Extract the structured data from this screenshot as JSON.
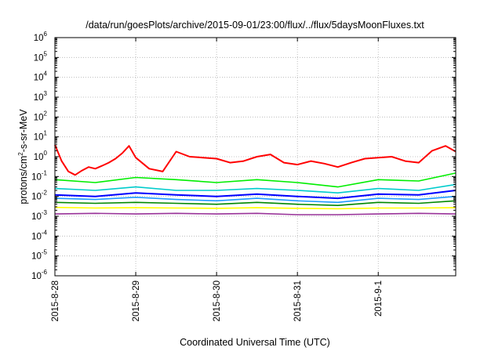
{
  "chart_data": {
    "type": "line",
    "title": "/data/run/goesPlots/archive/2015-09-01/23:00/flux/../flux/5daysMoonFluxes.txt",
    "xlabel": "Coordinated Universal Time (UTC)",
    "ylabel": "protons/cm2-s-sr-MeV",
    "ylabel_parts": {
      "pre": "protons/cm",
      "sup": "2",
      "post": "-s-sr-MeV"
    },
    "yscale": "log",
    "ylim": [
      1e-06,
      1000000.0
    ],
    "xlim": [
      "2015-08-28T00:00",
      "2015-09-01T23:00"
    ],
    "grid": true,
    "y_ticks": [
      {
        "value": 1e-06,
        "exp": "-6"
      },
      {
        "value": 1e-05,
        "exp": "-5"
      },
      {
        "value": 0.0001,
        "exp": "-4"
      },
      {
        "value": 0.001,
        "exp": "-3"
      },
      {
        "value": 0.01,
        "exp": "-2"
      },
      {
        "value": 0.1,
        "exp": "-1"
      },
      {
        "value": 1,
        "exp": "0"
      },
      {
        "value": 10,
        "exp": "1"
      },
      {
        "value": 100,
        "exp": "2"
      },
      {
        "value": 1000,
        "exp": "3"
      },
      {
        "value": 10000,
        "exp": "4"
      },
      {
        "value": 100000,
        "exp": "5"
      },
      {
        "value": 1000000,
        "exp": "6"
      }
    ],
    "y_tick_base": "10",
    "x_ticks": [
      "2015-8-28",
      "2015-8-29",
      "2015-8-30",
      "2015-8-31",
      "2015-9-1"
    ],
    "x_tick_values": [
      "2015-08-28T00:00",
      "2015-08-29T00:00",
      "2015-08-30T00:00",
      "2015-08-31T00:00",
      "2015-09-01T00:00"
    ],
    "series": [
      {
        "color": "#ff0000",
        "x": [
          "2015-08-28T00:00",
          "2015-08-28T02:00",
          "2015-08-28T04:00",
          "2015-08-28T06:00",
          "2015-08-28T08:00",
          "2015-08-28T10:00",
          "2015-08-28T12:00",
          "2015-08-28T14:00",
          "2015-08-28T16:00",
          "2015-08-28T18:00",
          "2015-08-28T20:00",
          "2015-08-28T22:00",
          "2015-08-29T00:00",
          "2015-08-29T04:00",
          "2015-08-29T08:00",
          "2015-08-29T12:00",
          "2015-08-29T16:00",
          "2015-08-29T20:00",
          "2015-08-30T00:00",
          "2015-08-30T04:00",
          "2015-08-30T08:00",
          "2015-08-30T12:00",
          "2015-08-30T16:00",
          "2015-08-30T20:00",
          "2015-08-31T00:00",
          "2015-08-31T04:00",
          "2015-08-31T08:00",
          "2015-08-31T12:00",
          "2015-08-31T16:00",
          "2015-08-31T20:00",
          "2015-09-01T00:00",
          "2015-09-01T04:00",
          "2015-09-01T08:00",
          "2015-09-01T12:00",
          "2015-09-01T16:00",
          "2015-09-01T20:00",
          "2015-09-01T23:00"
        ],
        "values": [
          4.0,
          0.6,
          0.18,
          0.12,
          0.2,
          0.3,
          0.25,
          0.35,
          0.5,
          0.8,
          1.5,
          3.5,
          0.9,
          0.25,
          0.18,
          1.8,
          1.0,
          0.9,
          0.8,
          0.5,
          0.6,
          1.0,
          1.3,
          0.5,
          0.4,
          0.6,
          0.45,
          0.3,
          0.5,
          0.8,
          0.9,
          1.0,
          0.6,
          0.5,
          2.0,
          3.5,
          1.8
        ]
      },
      {
        "color": "#00ee00",
        "x": [
          "2015-08-28T00:00",
          "2015-08-28T12:00",
          "2015-08-29T00:00",
          "2015-08-29T12:00",
          "2015-08-30T00:00",
          "2015-08-30T12:00",
          "2015-08-31T00:00",
          "2015-08-31T12:00",
          "2015-09-01T00:00",
          "2015-09-01T12:00",
          "2015-09-01T23:00"
        ],
        "values": [
          0.07,
          0.05,
          0.09,
          0.07,
          0.05,
          0.07,
          0.05,
          0.03,
          0.07,
          0.06,
          0.15
        ]
      },
      {
        "color": "#00cccc",
        "x": [
          "2015-08-28T00:00",
          "2015-08-28T12:00",
          "2015-08-29T00:00",
          "2015-08-29T12:00",
          "2015-08-30T00:00",
          "2015-08-30T12:00",
          "2015-08-31T00:00",
          "2015-08-31T12:00",
          "2015-09-01T00:00",
          "2015-09-01T12:00",
          "2015-09-01T23:00"
        ],
        "values": [
          0.025,
          0.02,
          0.03,
          0.02,
          0.02,
          0.025,
          0.02,
          0.015,
          0.025,
          0.02,
          0.04
        ]
      },
      {
        "color": "#0000ff",
        "x": [
          "2015-08-28T00:00",
          "2015-08-28T12:00",
          "2015-08-29T00:00",
          "2015-08-29T12:00",
          "2015-08-30T00:00",
          "2015-08-30T12:00",
          "2015-08-31T00:00",
          "2015-08-31T12:00",
          "2015-09-01T00:00",
          "2015-09-01T12:00",
          "2015-09-01T23:00"
        ],
        "values": [
          0.012,
          0.01,
          0.015,
          0.012,
          0.01,
          0.013,
          0.01,
          0.008,
          0.013,
          0.012,
          0.02
        ]
      },
      {
        "color": "#1f9bff",
        "x": [
          "2015-08-28T00:00",
          "2015-08-28T12:00",
          "2015-08-29T00:00",
          "2015-08-29T12:00",
          "2015-08-30T00:00",
          "2015-08-30T12:00",
          "2015-08-31T00:00",
          "2015-08-31T12:00",
          "2015-09-01T00:00",
          "2015-09-01T12:00",
          "2015-09-01T23:00"
        ],
        "values": [
          0.008,
          0.007,
          0.009,
          0.007,
          0.006,
          0.008,
          0.006,
          0.005,
          0.008,
          0.007,
          0.01
        ]
      },
      {
        "color": "#008800",
        "x": [
          "2015-08-28T00:00",
          "2015-08-28T12:00",
          "2015-08-29T00:00",
          "2015-08-29T12:00",
          "2015-08-30T00:00",
          "2015-08-30T12:00",
          "2015-08-31T00:00",
          "2015-08-31T12:00",
          "2015-09-01T00:00",
          "2015-09-01T12:00",
          "2015-09-01T23:00"
        ],
        "values": [
          0.005,
          0.0045,
          0.005,
          0.0045,
          0.004,
          0.005,
          0.004,
          0.0035,
          0.005,
          0.0045,
          0.006
        ]
      },
      {
        "color": "#ffff00",
        "x": [
          "2015-08-28T00:00",
          "2015-08-28T12:00",
          "2015-08-29T00:00",
          "2015-08-29T12:00",
          "2015-08-30T00:00",
          "2015-08-30T12:00",
          "2015-08-31T00:00",
          "2015-08-31T12:00",
          "2015-09-01T00:00",
          "2015-09-01T12:00",
          "2015-09-01T23:00"
        ],
        "values": [
          0.0028,
          0.0026,
          0.0027,
          0.0026,
          0.0025,
          0.0027,
          0.0025,
          0.0024,
          0.0026,
          0.0026,
          0.0027
        ]
      },
      {
        "color": "#993399",
        "x": [
          "2015-08-28T00:00",
          "2015-08-28T12:00",
          "2015-08-29T00:00",
          "2015-08-29T12:00",
          "2015-08-30T00:00",
          "2015-08-30T12:00",
          "2015-08-31T00:00",
          "2015-08-31T12:00",
          "2015-09-01T00:00",
          "2015-09-01T12:00",
          "2015-09-01T23:00"
        ],
        "values": [
          0.0013,
          0.0014,
          0.0013,
          0.0014,
          0.0013,
          0.0014,
          0.0012,
          0.0012,
          0.0013,
          0.0014,
          0.0013
        ]
      }
    ]
  }
}
